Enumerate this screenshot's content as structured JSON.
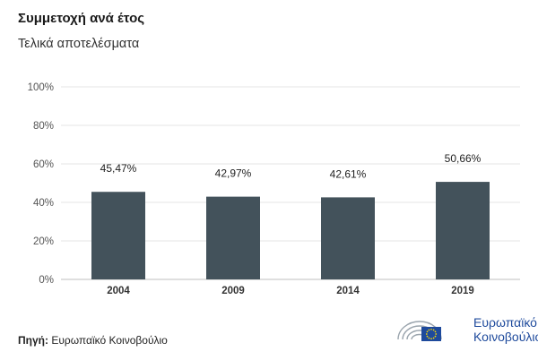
{
  "header": {
    "title": "Συμμετοχή ανά έτος",
    "subtitle": "Τελικά αποτελέσματα"
  },
  "chart_data": {
    "type": "bar",
    "categories": [
      "2004",
      "2009",
      "2014",
      "2019"
    ],
    "values": [
      45.47,
      42.97,
      42.61,
      50.66
    ],
    "value_labels": [
      "45,47%",
      "42,97%",
      "42,61%",
      "50,66%"
    ],
    "y_ticks": [
      "0%",
      "20%",
      "40%",
      "60%",
      "80%",
      "100%"
    ],
    "ylim": [
      0,
      100
    ],
    "grid": true,
    "bar_color": "#43525b",
    "xlabel": "",
    "ylabel": ""
  },
  "footer": {
    "source_label": "Πηγή:",
    "source_value": "Ευρωπαϊκό Κοινοβούλιο",
    "logo_line1": "Ευρωπαϊκό",
    "logo_line2": "Κοινοβούλιο",
    "logo_color": "#1e4a9c",
    "flag_color": "#1e4a9c",
    "star_color": "#ffdd00"
  }
}
